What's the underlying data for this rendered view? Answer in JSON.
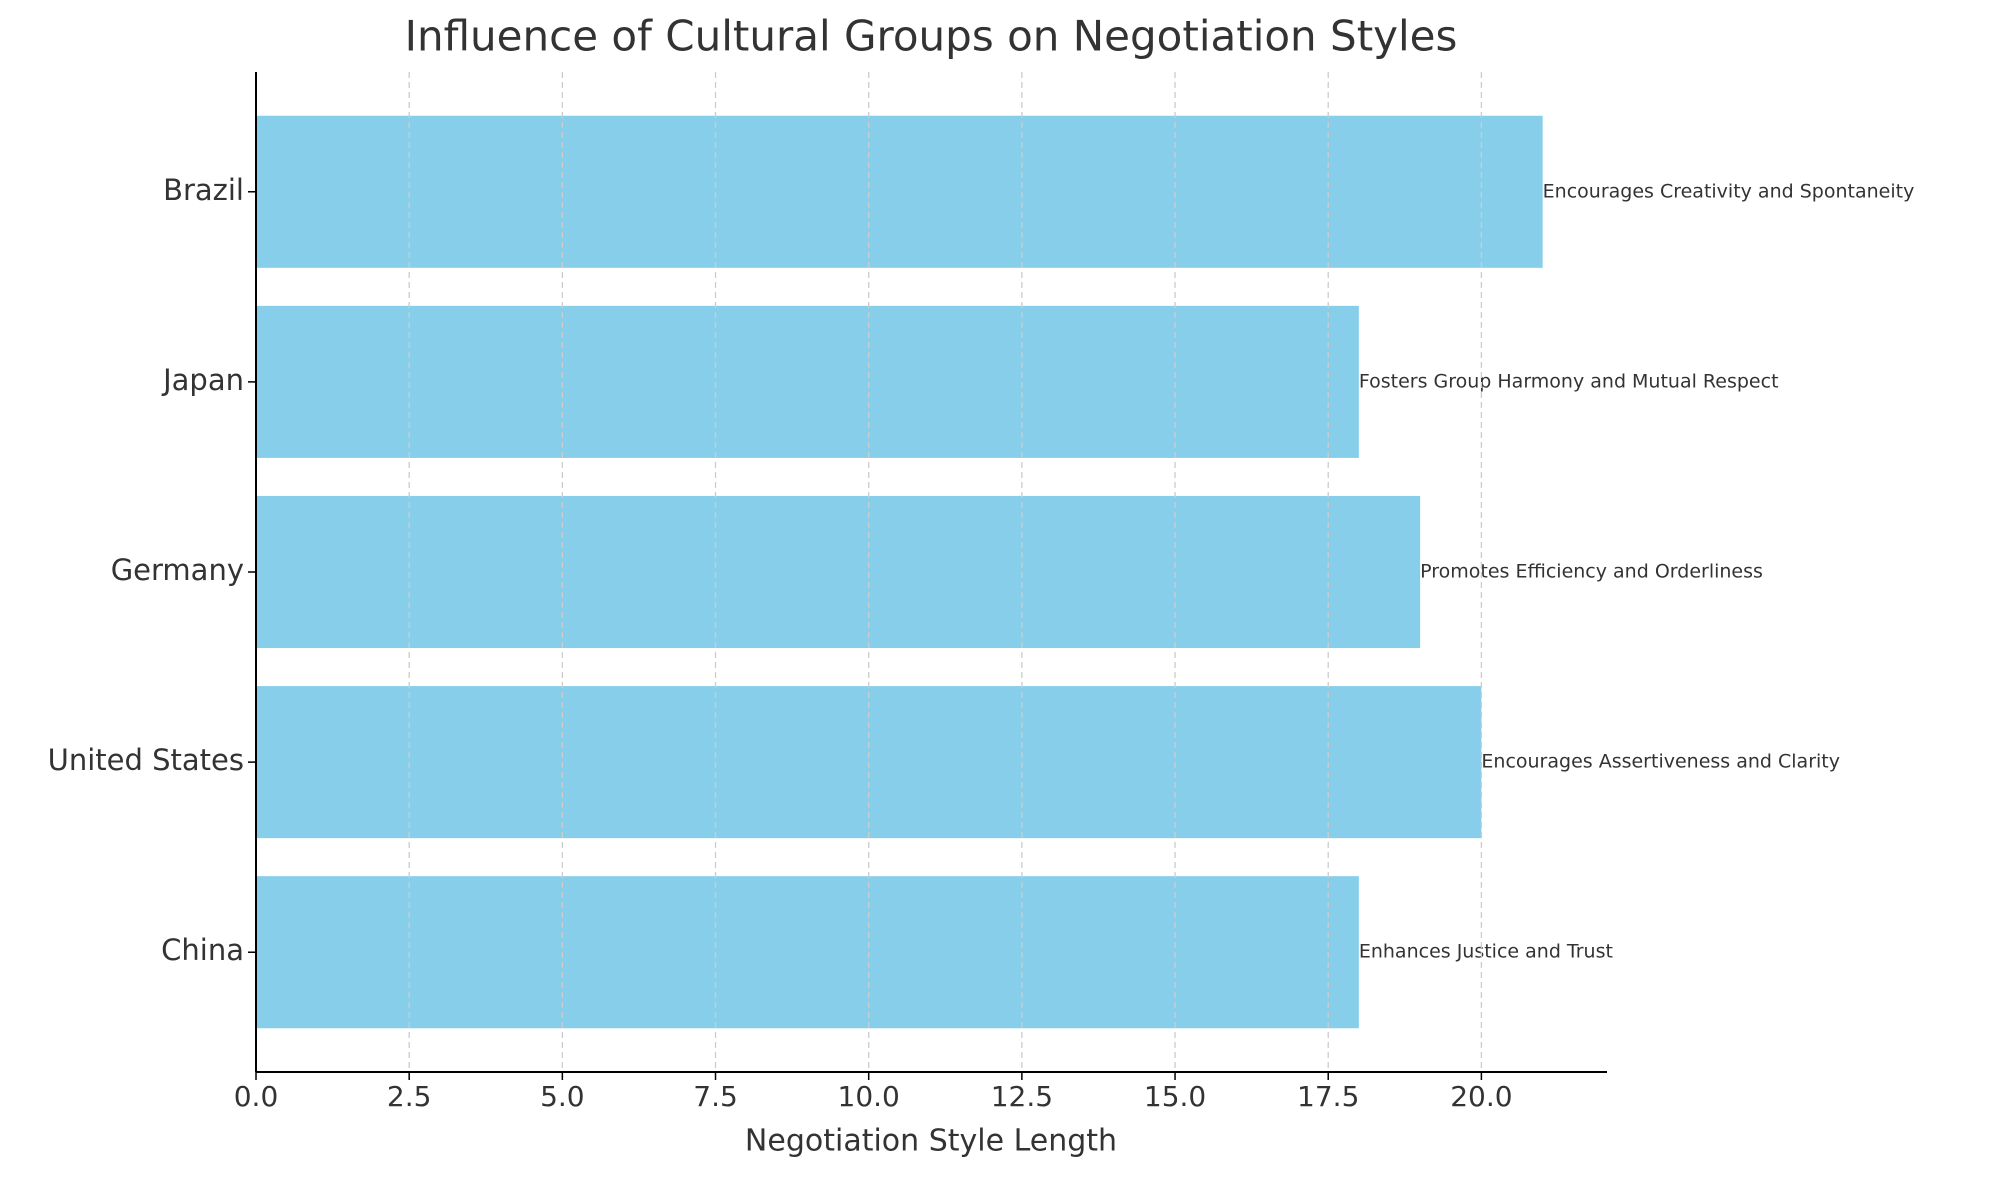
{
  "chart_data": {
    "type": "barh",
    "title": "Influence of Cultural Groups on Negotiation Styles",
    "xlabel": "Negotiation Style Length",
    "categories": [
      "China",
      "United States",
      "Germany",
      "Japan",
      "Brazil"
    ],
    "values": [
      18,
      20,
      19,
      18,
      21
    ],
    "bar_labels": [
      "Enhances Justice and Trust",
      "Encourages Assertiveness and Clarity",
      "Promotes Efficiency and Orderliness",
      "Fosters Group Harmony and Mutual Respect",
      "Encourages Creativity and Spontaneity"
    ],
    "color": "#87ceeb",
    "xlim": [
      0,
      22.05
    ],
    "xticks": [
      {
        "value": 0,
        "label": "0.0"
      },
      {
        "value": 2.5,
        "label": "2.5"
      },
      {
        "value": 5,
        "label": "5.0"
      },
      {
        "value": 7.5,
        "label": "7.5"
      },
      {
        "value": 10,
        "label": "10.0"
      },
      {
        "value": 12.5,
        "label": "12.5"
      },
      {
        "value": 15,
        "label": "15.0"
      },
      {
        "value": 17.5,
        "label": "17.5"
      },
      {
        "value": 20,
        "label": "20.0"
      }
    ],
    "grid": true
  }
}
